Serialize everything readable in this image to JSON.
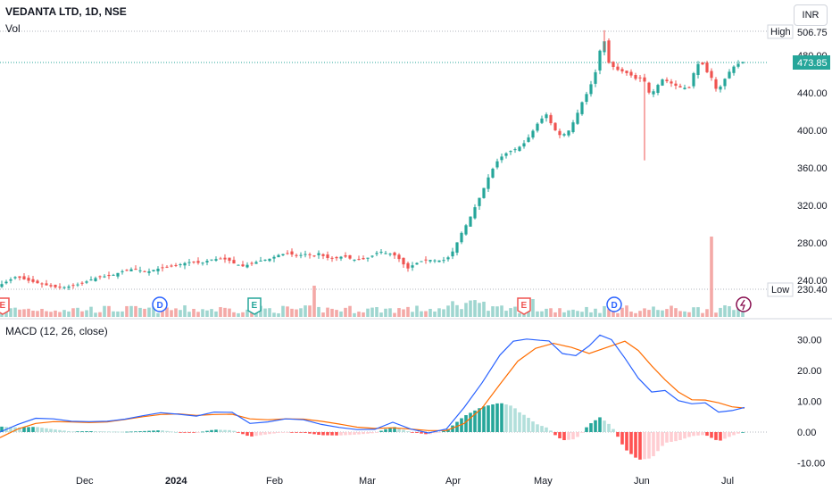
{
  "header": {
    "symbol": "VEDANTA LTD, 1D, NSE",
    "volume_label": "Vol",
    "currency": "INR"
  },
  "price_badges": {
    "high_label": "High",
    "high_value": "506.75",
    "last_value": "473.85",
    "low_label": "Low",
    "low_value": "230.40"
  },
  "macd_label": "MACD (12, 26, close)",
  "colors": {
    "up": "#26a69a",
    "down": "#ef5350",
    "macd_line": "#2962ff",
    "signal_line": "#ff6d00",
    "hist_up_strong": "#26a69a",
    "hist_up_weak": "#b2dfdb",
    "hist_down_strong": "#ff5252",
    "hist_down_weak": "#ffcdd2"
  },
  "chart_data": [
    {
      "type": "candlestick",
      "title": "VEDANTA LTD, 1D, NSE",
      "yaxis": {
        "ticks": [
          "240.00",
          "280.00",
          "320.00",
          "360.00",
          "400.00",
          "440.00",
          "480.00"
        ],
        "range": [
          228,
          512
        ]
      },
      "xaxis": {
        "ticks": [
          "Dec",
          "2024",
          "Feb",
          "Mar",
          "Apr",
          "May",
          "Jun",
          "Jul"
        ]
      },
      "high": 506.75,
      "low": 230.4,
      "last": 473.85,
      "close_path": [
        [
          0,
          235
        ],
        [
          8,
          239
        ],
        [
          18,
          244
        ],
        [
          30,
          240
        ],
        [
          42,
          237
        ],
        [
          55,
          234
        ],
        [
          65,
          232
        ],
        [
          75,
          233
        ],
        [
          85,
          235
        ],
        [
          95,
          238
        ],
        [
          105,
          242
        ],
        [
          115,
          244
        ],
        [
          125,
          245
        ],
        [
          135,
          249
        ],
        [
          145,
          252
        ],
        [
          155,
          251
        ],
        [
          165,
          249
        ],
        [
          175,
          252
        ],
        [
          185,
          254
        ],
        [
          195,
          255
        ],
        [
          205,
          258
        ],
        [
          215,
          260
        ],
        [
          225,
          258
        ],
        [
          235,
          262
        ],
        [
          245,
          263
        ],
        [
          255,
          262
        ],
        [
          262,
          258
        ],
        [
          272,
          255
        ],
        [
          282,
          258
        ],
        [
          292,
          261
        ],
        [
          302,
          263
        ],
        [
          312,
          267
        ],
        [
          322,
          269
        ],
        [
          332,
          266
        ],
        [
          342,
          268
        ],
        [
          352,
          266
        ],
        [
          357,
          269
        ],
        [
          365,
          264
        ],
        [
          375,
          263
        ],
        [
          385,
          266
        ],
        [
          395,
          262
        ],
        [
          405,
          262
        ],
        [
          415,
          265
        ],
        [
          425,
          271
        ],
        [
          432,
          269
        ],
        [
          440,
          268
        ],
        [
          448,
          262
        ],
        [
          456,
          252
        ],
        [
          462,
          256
        ],
        [
          470,
          260
        ],
        [
          480,
          262
        ],
        [
          490,
          261
        ],
        [
          500,
          262
        ],
        [
          508,
          272
        ],
        [
          516,
          289
        ],
        [
          524,
          302
        ],
        [
          532,
          318
        ],
        [
          540,
          334
        ],
        [
          548,
          352
        ],
        [
          556,
          366
        ],
        [
          564,
          374
        ],
        [
          572,
          378
        ],
        [
          580,
          381
        ],
        [
          588,
          387
        ],
        [
          596,
          398
        ],
        [
          604,
          410
        ],
        [
          612,
          417
        ],
        [
          620,
          402
        ],
        [
          628,
          394
        ],
        [
          636,
          398
        ],
        [
          644,
          412
        ],
        [
          652,
          430
        ],
        [
          660,
          444
        ],
        [
          667,
          462
        ],
        [
          672,
          485
        ],
        [
          677,
          495
        ],
        [
          682,
          472
        ],
        [
          690,
          465
        ],
        [
          700,
          462
        ],
        [
          708,
          458
        ],
        [
          716,
          452
        ],
        [
          720,
          466
        ],
        [
          724,
          438
        ],
        [
          728,
          441
        ],
        [
          734,
          442
        ],
        [
          740,
          455
        ],
        [
          748,
          452
        ],
        [
          756,
          448
        ],
        [
          764,
          445
        ],
        [
          772,
          446
        ],
        [
          780,
          470
        ],
        [
          786,
          472
        ],
        [
          792,
          462
        ],
        [
          796,
          460
        ],
        [
          800,
          444
        ],
        [
          806,
          445
        ],
        [
          812,
          455
        ],
        [
          818,
          464
        ],
        [
          824,
          470
        ],
        [
          830,
          472
        ],
        [
          834,
          473.85
        ]
      ]
    },
    {
      "type": "bar",
      "title": "Vol",
      "note": "volume bars with relative heights"
    },
    {
      "type": "line",
      "title": "MACD (12, 26, close)",
      "yaxis": {
        "ticks": [
          "30.00",
          "20.00",
          "10.00",
          "0.00",
          "-10.00"
        ],
        "range": [
          -12,
          33
        ]
      },
      "series": [
        {
          "name": "MACD",
          "points": [
            [
              0,
              0
            ],
            [
              20,
              2.5
            ],
            [
              40,
              4.5
            ],
            [
              60,
              4.3
            ],
            [
              80,
              3.5
            ],
            [
              100,
              3.4
            ],
            [
              120,
              3.5
            ],
            [
              140,
              4.2
            ],
            [
              160,
              5.3
            ],
            [
              180,
              6.3
            ],
            [
              200,
              5.8
            ],
            [
              220,
              5.2
            ],
            [
              240,
              6.5
            ],
            [
              260,
              6.4
            ],
            [
              280,
              2.8
            ],
            [
              300,
              3.3
            ],
            [
              320,
              4.3
            ],
            [
              340,
              4.0
            ],
            [
              360,
              2.5
            ],
            [
              380,
              1.5
            ],
            [
              400,
              0.8
            ],
            [
              420,
              0.9
            ],
            [
              440,
              3.2
            ],
            [
              460,
              1.0
            ],
            [
              480,
              -0.3
            ],
            [
              500,
              1.0
            ],
            [
              520,
              8.0
            ],
            [
              540,
              16.0
            ],
            [
              560,
              25.0
            ],
            [
              575,
              29.5
            ],
            [
              590,
              30.2
            ],
            [
              605,
              29.8
            ],
            [
              615,
              29.6
            ],
            [
              630,
              25.5
            ],
            [
              645,
              24.8
            ],
            [
              660,
              28.0
            ],
            [
              672,
              31.5
            ],
            [
              685,
              30.0
            ],
            [
              700,
              24.0
            ],
            [
              715,
              17.5
            ],
            [
              730,
              13.0
            ],
            [
              745,
              13.5
            ],
            [
              760,
              10.2
            ],
            [
              775,
              9.2
            ],
            [
              790,
              9.5
            ],
            [
              805,
              6.5
            ],
            [
              820,
              7.0
            ],
            [
              834,
              8.0
            ]
          ]
        },
        {
          "name": "Signal",
          "points": [
            [
              0,
              -1.8
            ],
            [
              20,
              1.0
            ],
            [
              40,
              2.8
            ],
            [
              60,
              3.4
            ],
            [
              80,
              3.3
            ],
            [
              100,
              3.1
            ],
            [
              120,
              3.3
            ],
            [
              140,
              4.1
            ],
            [
              160,
              5.0
            ],
            [
              180,
              5.7
            ],
            [
              200,
              5.9
            ],
            [
              220,
              5.4
            ],
            [
              240,
              5.7
            ],
            [
              260,
              5.8
            ],
            [
              280,
              4.3
            ],
            [
              300,
              4.0
            ],
            [
              320,
              4.3
            ],
            [
              340,
              4.2
            ],
            [
              360,
              3.5
            ],
            [
              380,
              2.6
            ],
            [
              400,
              1.6
            ],
            [
              420,
              1.2
            ],
            [
              440,
              1.4
            ],
            [
              460,
              1.0
            ],
            [
              480,
              0.5
            ],
            [
              500,
              0.5
            ],
            [
              520,
              2.8
            ],
            [
              540,
              7.8
            ],
            [
              560,
              15.5
            ],
            [
              580,
              23.0
            ],
            [
              600,
              27.2
            ],
            [
              620,
              28.8
            ],
            [
              640,
              27.5
            ],
            [
              660,
              25.5
            ],
            [
              680,
              27.5
            ],
            [
              700,
              29.5
            ],
            [
              715,
              26.5
            ],
            [
              730,
              21.5
            ],
            [
              745,
              17.0
            ],
            [
              760,
              13.0
            ],
            [
              775,
              10.5
            ],
            [
              790,
              10.4
            ],
            [
              805,
              9.5
            ],
            [
              820,
              8.2
            ],
            [
              834,
              7.8
            ]
          ]
        }
      ]
    }
  ]
}
